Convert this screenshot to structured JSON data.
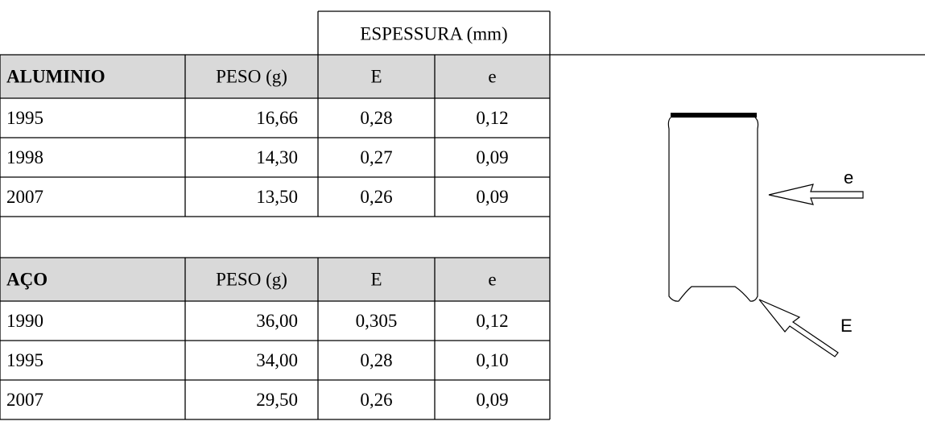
{
  "header": {
    "thickness": "ESPESSURA (mm)"
  },
  "table": {
    "sections": [
      {
        "header": [
          "ALUMINIO",
          "PESO (g)",
          "E",
          "e"
        ],
        "rows": [
          [
            "1995",
            "16,66",
            "0,28",
            "0,12"
          ],
          [
            "1998",
            "14,30",
            "0,27",
            "0,09"
          ],
          [
            "2007",
            "13,50",
            "0,26",
            "0,09"
          ]
        ]
      },
      {
        "header": [
          "AÇO",
          "PESO (g)",
          "E",
          "e"
        ],
        "rows": [
          [
            "1990",
            "36,00",
            "0,305",
            "0,12"
          ],
          [
            "1995",
            "34,00",
            "0,28",
            "0,10"
          ],
          [
            "2007",
            "29,50",
            "0,26",
            "0,09"
          ]
        ]
      }
    ]
  },
  "diagram": {
    "labels": [
      "e",
      "E"
    ]
  }
}
